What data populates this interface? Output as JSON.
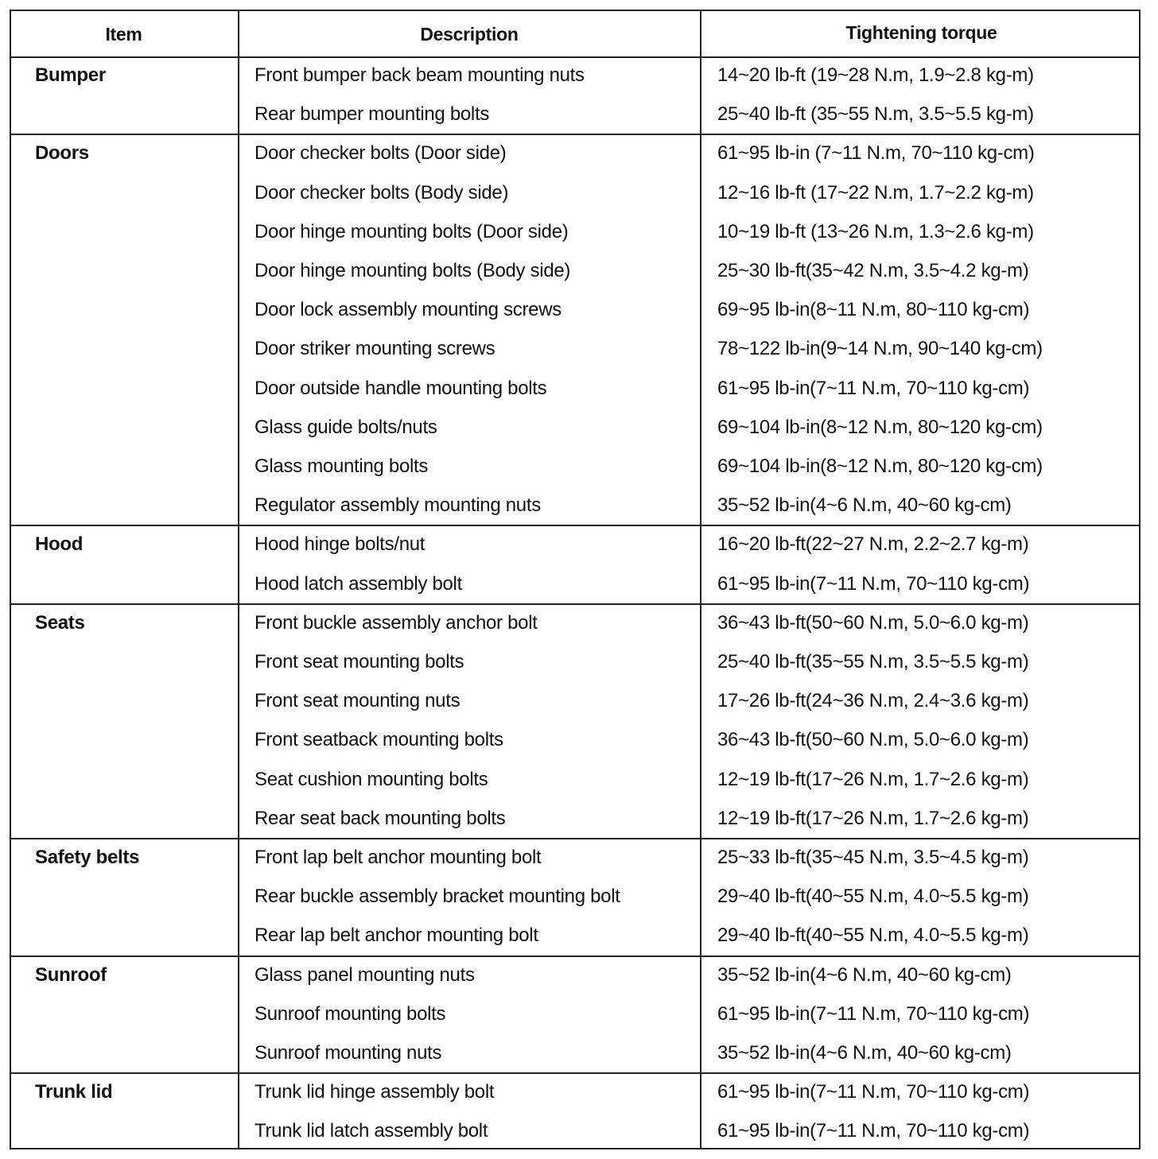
{
  "table": {
    "header": [
      "Item",
      "Description",
      "Tightening torque"
    ],
    "groups": [
      {
        "item": "Bumper",
        "rows": [
          [
            "Front bumper back beam mounting nuts",
            "14~20 lb-ft (19~28 N.m, 1.9~2.8 kg-m)"
          ],
          [
            "Rear bumper mounting bolts",
            "25~40 lb-ft (35~55 N.m, 3.5~5.5 kg-m)"
          ]
        ]
      },
      {
        "item": "Doors",
        "rows": [
          [
            "Door checker bolts (Door side)",
            "61~95 lb-in (7~11 N.m, 70~110 kg-cm)"
          ],
          [
            "Door checker bolts (Body side)",
            "12~16 lb-ft (17~22 N.m, 1.7~2.2 kg-m)"
          ],
          [
            "Door hinge mounting bolts (Door side)",
            "10~19 lb-ft (13~26 N.m, 1.3~2.6 kg-m)"
          ],
          [
            "Door hinge mounting bolts (Body side)",
            "25~30 lb-ft(35~42 N.m, 3.5~4.2 kg-m)"
          ],
          [
            "Door lock assembly mounting screws",
            "69~95 lb-in(8~11 N.m, 80~110 kg-cm)"
          ],
          [
            "Door striker mounting screws",
            "78~122 lb-in(9~14 N.m, 90~140 kg-cm)"
          ],
          [
            "Door outside handle mounting bolts",
            "61~95 lb-in(7~11 N.m, 70~110 kg-cm)"
          ],
          [
            "Glass guide bolts/nuts",
            "69~104 lb-in(8~12 N.m, 80~120 kg-cm)"
          ],
          [
            "Glass mounting bolts",
            "69~104 lb-in(8~12 N.m, 80~120 kg-cm)"
          ],
          [
            "Regulator assembly mounting nuts",
            "35~52 lb-in(4~6 N.m, 40~60 kg-cm)"
          ]
        ]
      },
      {
        "item": "Hood",
        "rows": [
          [
            "Hood hinge bolts/nut",
            "16~20 lb-ft(22~27 N.m, 2.2~2.7 kg-m)"
          ],
          [
            "Hood latch assembly bolt",
            "61~95 lb-in(7~11 N.m, 70~110 kg-cm)"
          ]
        ]
      },
      {
        "item": "Seats",
        "rows": [
          [
            "Front buckle assembly anchor bolt",
            "36~43 lb-ft(50~60 N.m, 5.0~6.0 kg-m)"
          ],
          [
            "Front seat mounting bolts",
            "25~40 lb-ft(35~55 N.m, 3.5~5.5 kg-m)"
          ],
          [
            "Front seat mounting nuts",
            "17~26 lb-ft(24~36 N.m, 2.4~3.6 kg-m)"
          ],
          [
            "Front seatback mounting bolts",
            "36~43 lb-ft(50~60 N.m, 5.0~6.0 kg-m)"
          ],
          [
            "Seat cushion mounting bolts",
            "12~19 lb-ft(17~26 N.m, 1.7~2.6 kg-m)"
          ],
          [
            "Rear seat back mounting bolts",
            "12~19 lb-ft(17~26 N.m, 1.7~2.6 kg-m)"
          ]
        ]
      },
      {
        "item": "Safety belts",
        "rows": [
          [
            "Front lap belt anchor mounting bolt",
            "25~33 lb-ft(35~45 N.m, 3.5~4.5 kg-m)"
          ],
          [
            "Rear buckle assembly bracket mounting bolt",
            "29~40 lb-ft(40~55 N.m, 4.0~5.5 kg-m)"
          ],
          [
            "Rear lap belt anchor mounting bolt",
            "29~40 lb-ft(40~55 N.m, 4.0~5.5 kg-m)"
          ]
        ]
      },
      {
        "item": "Sunroof",
        "rows": [
          [
            "Glass panel mounting nuts",
            "35~52 lb-in(4~6 N.m, 40~60 kg-cm)"
          ],
          [
            "Sunroof mounting bolts",
            "61~95 lb-in(7~11 N.m, 70~110 kg-cm)"
          ],
          [
            "Sunroof mounting nuts",
            "35~52 lb-in(4~6 N.m, 40~60 kg-cm)"
          ]
        ]
      },
      {
        "item": "Trunk lid",
        "rows": [
          [
            "Trunk lid hinge assembly bolt",
            "61~95 lb-in(7~11 N.m, 70~110 kg-cm)"
          ],
          [
            "Trunk lid latch assembly bolt",
            "61~95 lb-in(7~11 N.m, 70~110 kg-cm)"
          ]
        ]
      }
    ]
  }
}
